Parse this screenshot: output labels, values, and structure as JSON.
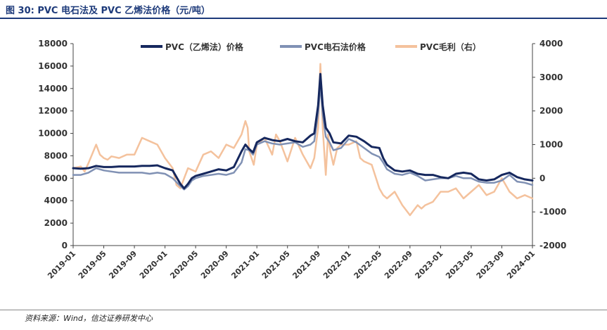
{
  "header": {
    "title": "图 30:  PVC 电石法及 PVC 乙烯法价格（元/吨）"
  },
  "footer": {
    "source": "资料来源：Wind，信达证券研发中心"
  },
  "chart_data": {
    "type": "line",
    "title": "图 30:  PVC 电石法及 PVC 乙烯法价格（元/吨）",
    "ylim_left": [
      0,
      18000
    ],
    "ylim_right": [
      -2000,
      4000
    ],
    "yticks_left": [
      "0",
      "2000",
      "4000",
      "6000",
      "8000",
      "10000",
      "12000",
      "14000",
      "16000",
      "18000"
    ],
    "yticks_right": [
      "-2000",
      "-1000",
      "0",
      "1000",
      "2000",
      "3000",
      "4000"
    ],
    "xticks": [
      "2019-01",
      "2019-05",
      "2019-09",
      "2020-01",
      "2020-05",
      "2020-09",
      "2021-01",
      "2021-05",
      "2021-09",
      "2022-01",
      "2022-05",
      "2022-09",
      "2023-01",
      "2023-05",
      "2023-09",
      "2024-01"
    ],
    "x_range_months": [
      0,
      60
    ],
    "legend_position": "top",
    "series": [
      {
        "name": "PVC（乙烯法）价格",
        "axis": "left",
        "color": "#16285e",
        "x": [
          0,
          1,
          2,
          3,
          4,
          5,
          6,
          7,
          8,
          9,
          10,
          11,
          12,
          13,
          14,
          14.5,
          15,
          15.5,
          16,
          17,
          18,
          19,
          20,
          21,
          22,
          22.5,
          23,
          23.5,
          24,
          25,
          26,
          27,
          28,
          29,
          30,
          31,
          31.5,
          32,
          32.3,
          32.6,
          33,
          33.5,
          34,
          35,
          36,
          37,
          38,
          39,
          40,
          40.5,
          41,
          42,
          43,
          44,
          45,
          46,
          47,
          48,
          49,
          50,
          51,
          52,
          53,
          54,
          55,
          56,
          57,
          58,
          59,
          60
        ],
        "y": [
          6900,
          6850,
          6900,
          7100,
          7000,
          7000,
          7050,
          7050,
          7050,
          7100,
          7100,
          7150,
          6900,
          6700,
          5500,
          5100,
          5500,
          6000,
          6200,
          6400,
          6600,
          6800,
          6700,
          7000,
          8400,
          9000,
          8600,
          8300,
          9200,
          9600,
          9400,
          9300,
          9500,
          9300,
          9200,
          9800,
          10000,
          12500,
          15300,
          12500,
          10500,
          10000,
          9200,
          9100,
          9800,
          9700,
          9300,
          8800,
          8700,
          7800,
          7200,
          6700,
          6600,
          6700,
          6400,
          6300,
          6300,
          6100,
          6000,
          6400,
          6500,
          6400,
          5900,
          5800,
          5900,
          6300,
          6500,
          6100,
          5900,
          5800
        ]
      },
      {
        "name": "PVC电石法价格",
        "axis": "left",
        "color": "#8091b4",
        "x": [
          0,
          1,
          2,
          3,
          4,
          5,
          6,
          7,
          8,
          9,
          10,
          11,
          12,
          13,
          14,
          14.5,
          15,
          15.5,
          16,
          17,
          18,
          19,
          20,
          21,
          22,
          22.5,
          23,
          23.5,
          24,
          25,
          26,
          27,
          28,
          29,
          30,
          31,
          31.5,
          32,
          32.3,
          32.6,
          33,
          33.5,
          34,
          35,
          36,
          37,
          38,
          39,
          40,
          40.5,
          41,
          42,
          43,
          44,
          45,
          46,
          47,
          48,
          49,
          50,
          51,
          52,
          53,
          54,
          55,
          56,
          57,
          58,
          59,
          60
        ],
        "y": [
          6300,
          6300,
          6500,
          6900,
          6700,
          6600,
          6500,
          6500,
          6500,
          6500,
          6400,
          6500,
          6400,
          6000,
          5300,
          5000,
          5300,
          5800,
          6000,
          6200,
          6300,
          6400,
          6300,
          6500,
          7400,
          8600,
          8500,
          8100,
          9000,
          9300,
          9100,
          9000,
          9100,
          9200,
          8800,
          9000,
          9300,
          11800,
          14400,
          11700,
          9700,
          9200,
          8500,
          8700,
          9500,
          9200,
          8700,
          8200,
          7900,
          7400,
          6800,
          6400,
          6300,
          6500,
          6200,
          5800,
          5900,
          6000,
          6000,
          6200,
          6000,
          6000,
          5700,
          5600,
          5600,
          5800,
          6300,
          5700,
          5600,
          5400
        ]
      },
      {
        "name": "PVC毛利（右）",
        "axis": "right",
        "color": "#f4c29d",
        "x": [
          0,
          1,
          1.5,
          2,
          3,
          3.5,
          4,
          4.5,
          5,
          6,
          7,
          8,
          9,
          10,
          11,
          12,
          13,
          13.5,
          14,
          14.5,
          15,
          16,
          17,
          18,
          19,
          20,
          21,
          22,
          22.5,
          22.8,
          23,
          23.3,
          23.6,
          24,
          25,
          26,
          26.5,
          27,
          28,
          29,
          30,
          31,
          31.5,
          32,
          32.3,
          32.6,
          33,
          33.3,
          33.6,
          34,
          34.5,
          35,
          36,
          37,
          37.5,
          38,
          39,
          40,
          40.5,
          41,
          42,
          43,
          44,
          45,
          45.5,
          46,
          47,
          48,
          49,
          50,
          51,
          52,
          53,
          54,
          55,
          56,
          57,
          58,
          59,
          60
        ],
        "y": [
          300,
          350,
          200,
          450,
          1000,
          700,
          600,
          550,
          650,
          600,
          700,
          700,
          1200,
          1100,
          1000,
          600,
          300,
          -200,
          -300,
          0,
          300,
          200,
          700,
          800,
          600,
          1000,
          900,
          1300,
          1700,
          1500,
          800,
          600,
          400,
          1000,
          1200,
          700,
          1300,
          1100,
          500,
          1200,
          700,
          300,
          600,
          1500,
          3400,
          1500,
          100,
          1300,
          800,
          400,
          900,
          1000,
          1000,
          1100,
          600,
          500,
          400,
          -300,
          -500,
          -600,
          -400,
          -800,
          -1100,
          -800,
          -900,
          -800,
          -700,
          -400,
          -400,
          -300,
          -600,
          -400,
          -200,
          -500,
          -400,
          0,
          -400,
          -600,
          -500,
          -600
        ]
      }
    ]
  }
}
